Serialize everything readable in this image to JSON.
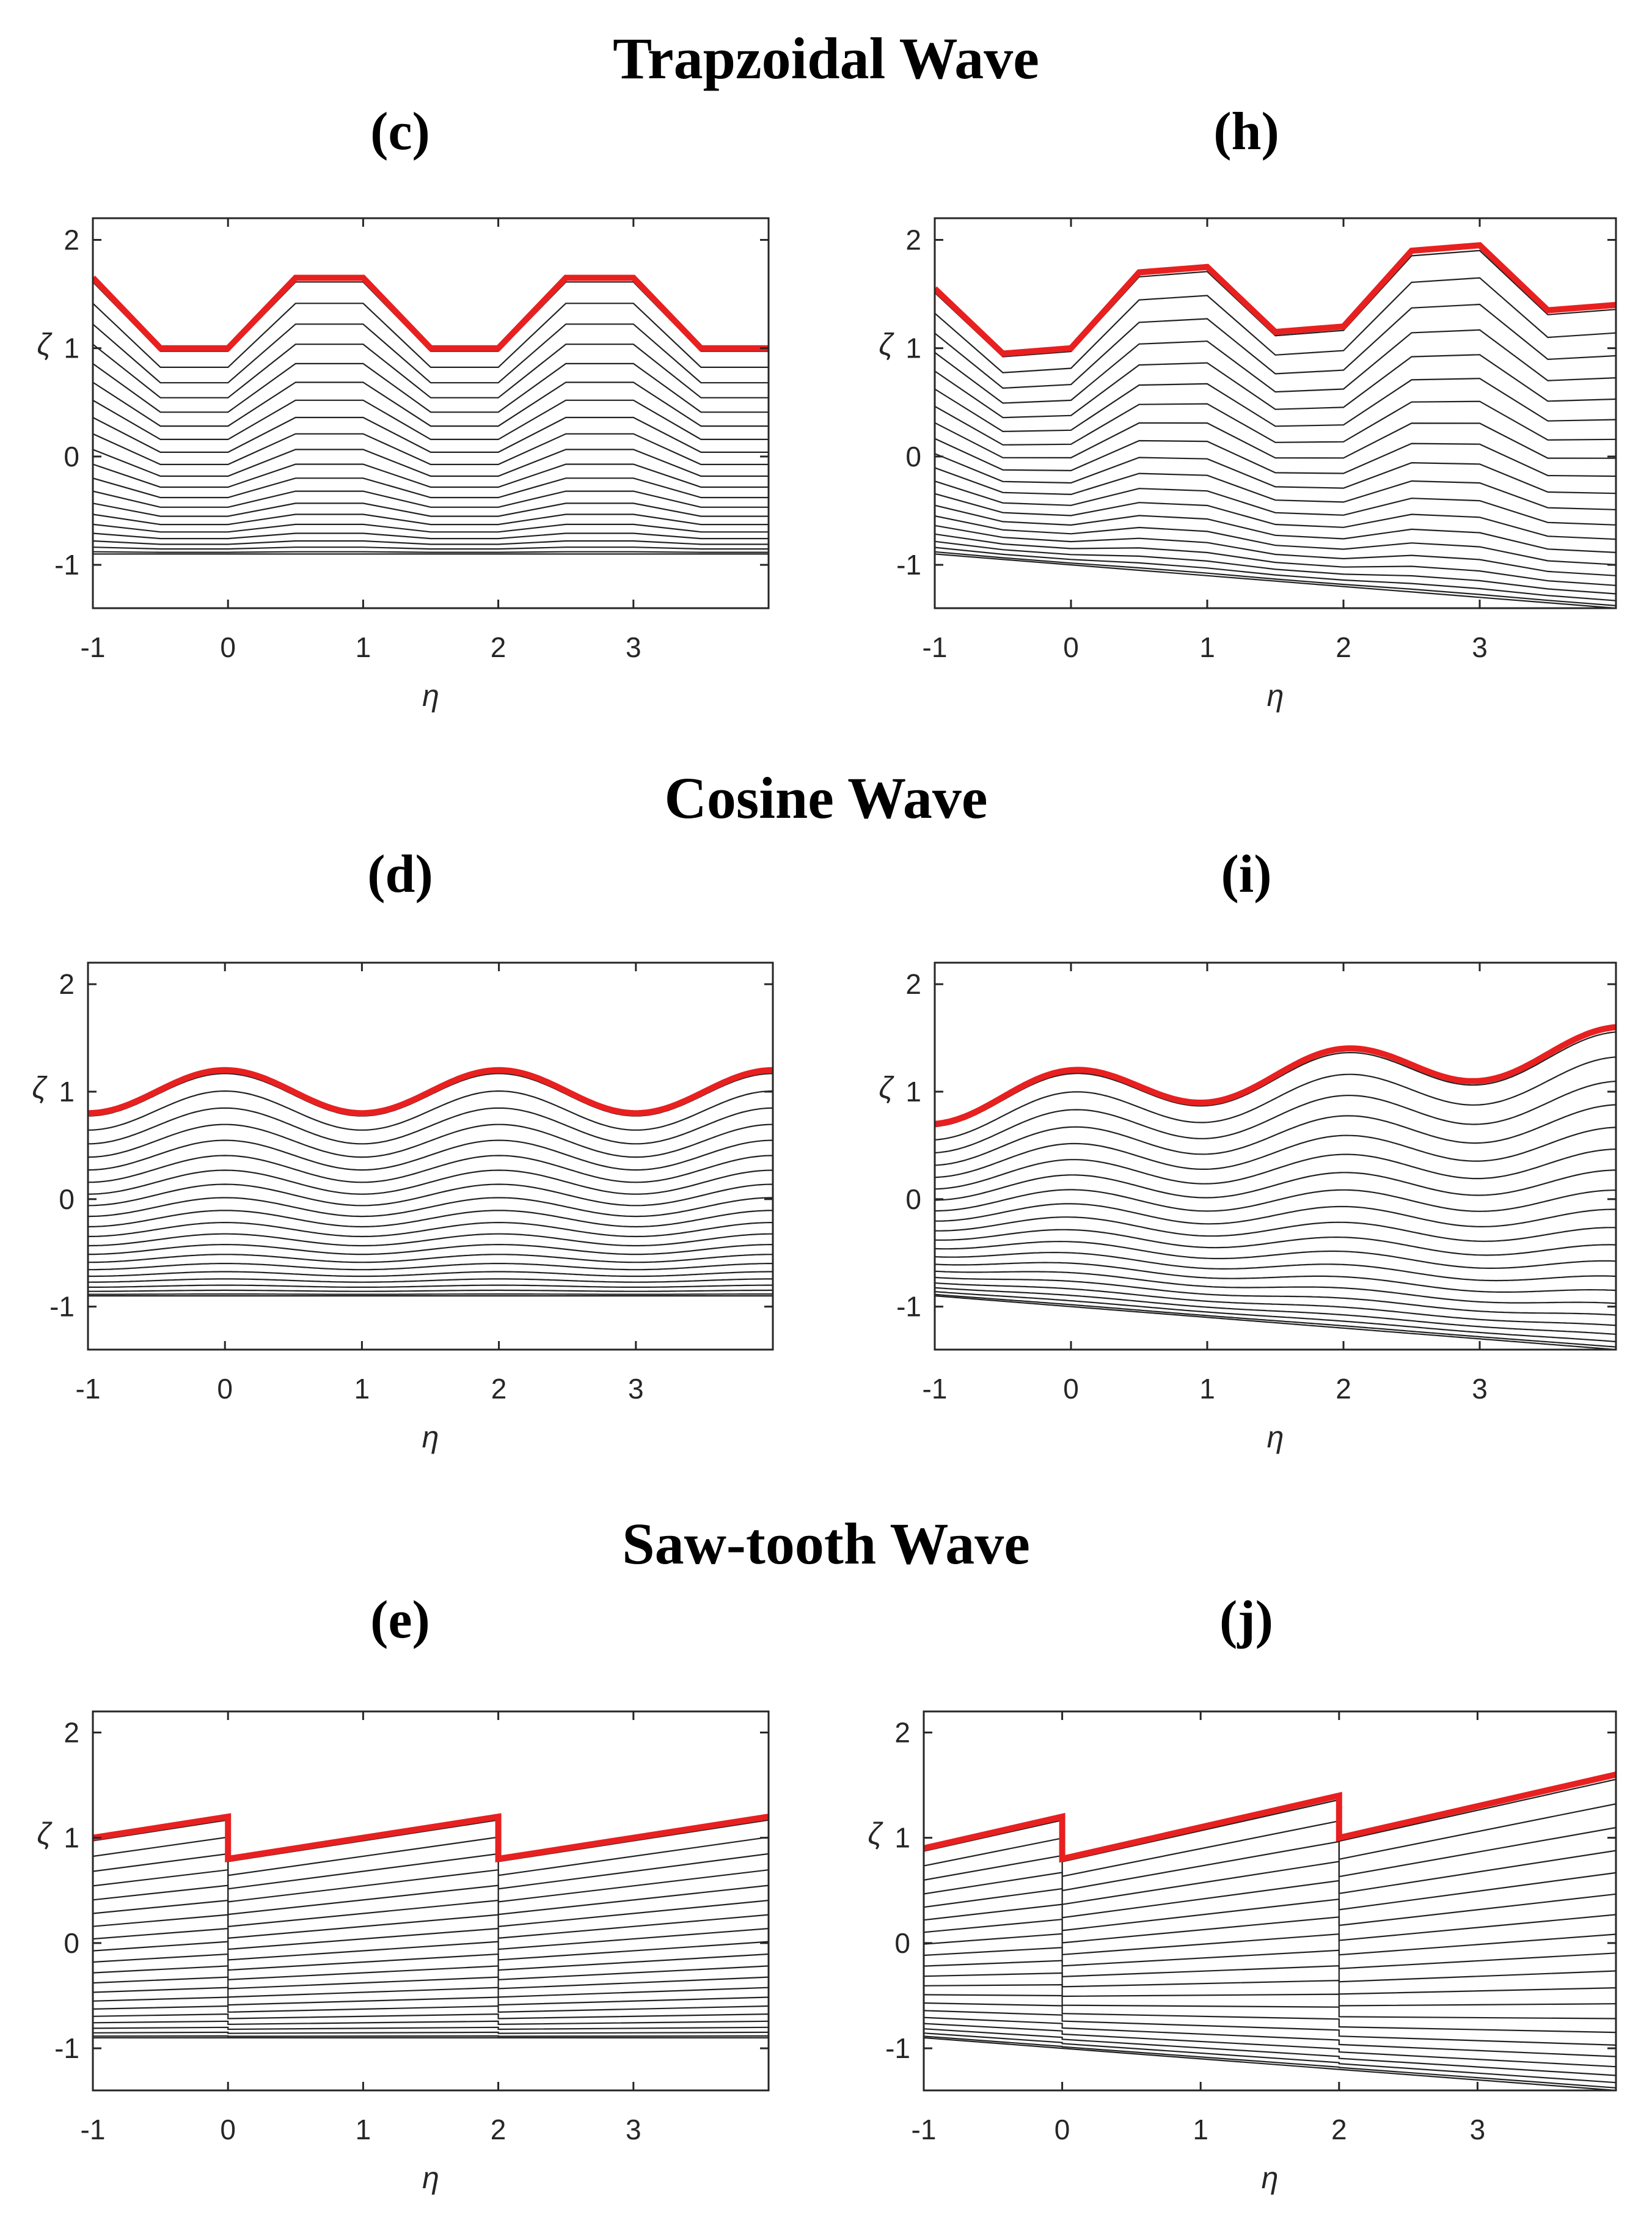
{
  "titles": {
    "trapezoidal": "Trapzoidal Wave",
    "cosine": "Cosine Wave",
    "sawtooth": "Saw-tooth Wave"
  },
  "chart_data": [
    {
      "id": "c",
      "panel_label": "(c)",
      "type": "line",
      "wave": "trapezoid",
      "slope": 0,
      "xlabel": "η",
      "ylabel": "ζ",
      "xlim": [
        -1,
        4
      ],
      "ylim": [
        -1.4,
        2.2
      ],
      "xticks": [
        "-1",
        "0",
        "1",
        "2",
        "3"
      ],
      "yticks": [
        "-1",
        "0",
        "1",
        "2"
      ],
      "num_streamlines": 21,
      "bottom_level": -0.9,
      "boundary_color": "#e82020",
      "streamline_color": "#222222",
      "boundary": {
        "x": [
          -1,
          -0.5,
          0,
          0.5,
          1,
          1.5,
          2,
          2.5,
          3,
          3.5,
          4
        ],
        "y": [
          1.65,
          1.0,
          1.0,
          1.65,
          1.65,
          1.0,
          1.0,
          1.65,
          1.65,
          1.0,
          1.0
        ]
      }
    },
    {
      "id": "h",
      "panel_label": "(h)",
      "type": "line",
      "wave": "trapezoid",
      "slope": 0.1,
      "xlabel": "η",
      "ylabel": "ζ",
      "xlim": [
        -1,
        4
      ],
      "ylim": [
        -1.4,
        2.2
      ],
      "xticks": [
        "-1",
        "0",
        "1",
        "2",
        "3"
      ],
      "yticks": [
        "-1",
        "0",
        "1",
        "2"
      ],
      "num_streamlines": 21,
      "bottom_level": -0.9,
      "boundary_color": "#e82020",
      "streamline_color": "#222222",
      "boundary": {
        "x": [
          -1,
          -0.5,
          0,
          0.5,
          1,
          1.5,
          2,
          2.5,
          3,
          3.5,
          4
        ],
        "y": [
          1.55,
          0.95,
          1.0,
          1.7,
          1.75,
          1.15,
          1.2,
          1.9,
          1.95,
          1.35,
          1.4
        ]
      }
    },
    {
      "id": "d",
      "panel_label": "(d)",
      "type": "line",
      "wave": "cosine",
      "slope": 0,
      "xlabel": "η",
      "ylabel": "ζ",
      "xlim": [
        -1,
        4
      ],
      "ylim": [
        -1.4,
        2.2
      ],
      "xticks": [
        "-1",
        "0",
        "1",
        "2",
        "3"
      ],
      "yticks": [
        "-1",
        "0",
        "1",
        "2"
      ],
      "num_streamlines": 21,
      "bottom_level": -0.9,
      "boundary_color": "#e82020",
      "streamline_color": "#222222",
      "boundary": {
        "x": [
          -1,
          0,
          1,
          2,
          3,
          4
        ],
        "y": [
          0.8,
          1.2,
          0.8,
          1.2,
          0.8,
          1.2
        ]
      }
    },
    {
      "id": "i",
      "panel_label": "(i)",
      "type": "line",
      "wave": "cosine",
      "slope": 0.1,
      "xlabel": "η",
      "ylabel": "ζ",
      "xlim": [
        -1,
        4
      ],
      "ylim": [
        -1.4,
        2.2
      ],
      "xticks": [
        "-1",
        "0",
        "1",
        "2",
        "3"
      ],
      "yticks": [
        "-1",
        "0",
        "1",
        "2"
      ],
      "num_streamlines": 21,
      "bottom_level": -0.9,
      "boundary_color": "#e82020",
      "streamline_color": "#222222",
      "boundary": {
        "x": [
          -1,
          0,
          1,
          2,
          3,
          4
        ],
        "y": [
          0.7,
          1.2,
          0.9,
          1.4,
          1.1,
          1.6
        ]
      }
    },
    {
      "id": "e",
      "panel_label": "(e)",
      "type": "line",
      "wave": "sawtooth",
      "slope": 0,
      "xlabel": "η",
      "ylabel": "ζ",
      "xlim": [
        -1,
        4
      ],
      "ylim": [
        -1.4,
        2.2
      ],
      "xticks": [
        "-1",
        "0",
        "1",
        "2",
        "3"
      ],
      "yticks": [
        "-1",
        "0",
        "1",
        "2"
      ],
      "num_streamlines": 21,
      "bottom_level": -0.9,
      "boundary_color": "#e82020",
      "streamline_color": "#222222",
      "boundary": {
        "x": [
          -1,
          0,
          0,
          2,
          2,
          4
        ],
        "y": [
          1.0,
          1.2,
          0.8,
          1.2,
          0.8,
          1.2
        ]
      }
    },
    {
      "id": "j",
      "panel_label": "(j)",
      "type": "line",
      "wave": "sawtooth",
      "slope": 0.1,
      "xlabel": "η",
      "ylabel": "ζ",
      "xlim": [
        -1,
        4
      ],
      "ylim": [
        -1.4,
        2.2
      ],
      "xticks": [
        "-1",
        "0",
        "1",
        "2",
        "3"
      ],
      "yticks": [
        "-1",
        "0",
        "1",
        "2"
      ],
      "num_streamlines": 21,
      "bottom_level": -0.9,
      "boundary_color": "#e82020",
      "streamline_color": "#222222",
      "boundary": {
        "x": [
          -1,
          0,
          0,
          2,
          2,
          4
        ],
        "y": [
          0.9,
          1.2,
          0.8,
          1.4,
          1.0,
          1.6
        ]
      }
    }
  ]
}
